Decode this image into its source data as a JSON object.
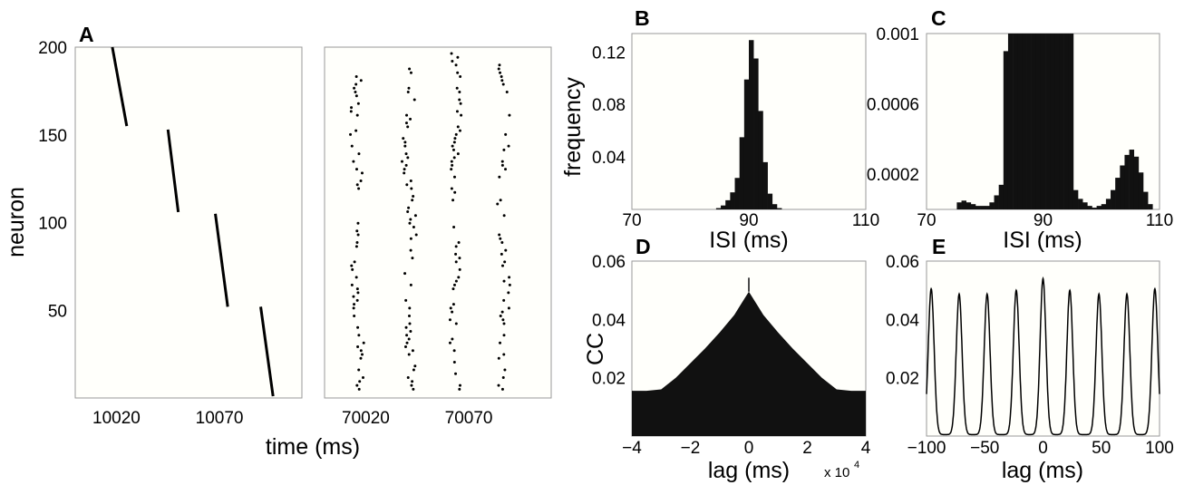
{
  "chart_data": [
    {
      "panel": "A",
      "type": "scatter",
      "ylabel": "neuron",
      "xlabel": "time (ms)",
      "ylim": [
        0,
        200
      ],
      "yticks": [
        "50",
        "100",
        "150",
        "200"
      ],
      "left": {
        "xlim": [
          10000,
          10110
        ],
        "xticks": [
          "10020",
          "10070"
        ],
        "segments": [
          {
            "x": [
              10018,
              10025
            ],
            "y": [
              200,
              155
            ]
          },
          {
            "x": [
              10045,
              10050
            ],
            "y": [
              153,
              106
            ]
          },
          {
            "x": [
              10068,
              10074
            ],
            "y": [
              105,
              52
            ]
          },
          {
            "x": [
              10090,
              10096
            ],
            "y": [
              52,
              1
            ]
          }
        ]
      },
      "right": {
        "xlim": [
          70000,
          70110
        ],
        "xticks": [
          "70020",
          "70070"
        ],
        "columns": [
          70016,
          70041,
          70064,
          70087
        ]
      }
    },
    {
      "panel": "B",
      "type": "bar",
      "ylabel": "frequency",
      "xlabel": "ISI (ms)",
      "xlim": [
        70,
        110
      ],
      "ylim": [
        0,
        0.134
      ],
      "xticks": [
        "70",
        "90",
        "110"
      ],
      "yticks": [
        "0.04",
        "0.08",
        "0.12"
      ],
      "bin_width": 0.8,
      "bins_x": [
        84.4,
        85.2,
        86.0,
        86.8,
        87.6,
        88.4,
        89.2,
        90.0,
        90.8,
        91.6,
        92.4,
        93.2,
        94.0,
        94.8
      ],
      "values": [
        0.001,
        0.003,
        0.007,
        0.013,
        0.024,
        0.055,
        0.099,
        0.129,
        0.115,
        0.075,
        0.036,
        0.012,
        0.004,
        0.001
      ]
    },
    {
      "panel": "C",
      "type": "bar",
      "xlabel": "ISI (ms)",
      "xlim": [
        70,
        110
      ],
      "ylim": [
        0,
        0.001
      ],
      "xticks": [
        "70",
        "90",
        "110"
      ],
      "yticks": [
        "0.0002",
        "0.0006",
        "0.001"
      ],
      "bin_width": 0.8,
      "bins_x": [
        75.2,
        76.0,
        76.8,
        77.6,
        78.4,
        79.2,
        80.0,
        80.8,
        81.6,
        82.4,
        83.2,
        84.0,
        84.8,
        85.6,
        86.4,
        87.2,
        88.0,
        88.8,
        89.6,
        90.4,
        91.2,
        92.0,
        92.8,
        93.6,
        94.4,
        95.2,
        96.0,
        96.8,
        97.6,
        98.4,
        99.2,
        100.0,
        100.8,
        101.6,
        102.4,
        103.2,
        104.0,
        104.8,
        105.6,
        106.4,
        107.2,
        108.0
      ],
      "values": [
        4e-05,
        5e-05,
        4e-05,
        3e-05,
        2e-05,
        2e-05,
        2e-05,
        4e-05,
        8e-05,
        0.00014,
        0.0009,
        0.001,
        0.001,
        0.001,
        0.001,
        0.001,
        0.001,
        0.001,
        0.001,
        0.001,
        0.001,
        0.001,
        0.001,
        0.001,
        0.001,
        0.00011,
        6e-05,
        4e-05,
        2e-05,
        1e-05,
        2e-05,
        3e-05,
        6e-05,
        0.00011,
        0.00018,
        0.00025,
        0.00031,
        0.00034,
        0.0003,
        0.00021,
        0.0001,
        3e-05
      ]
    },
    {
      "panel": "D",
      "type": "area",
      "ylabel": "CC",
      "xlabel": "lag (ms)",
      "axis_multiplier": "x 10",
      "axis_multiplier_exp": "4",
      "xlim": [
        -4,
        4
      ],
      "ylim": [
        0,
        0.06
      ],
      "xticks": [
        "−4",
        "−2",
        "0",
        "2",
        "4"
      ],
      "yticks": [
        "0.02",
        "0.04",
        "0.06"
      ],
      "x": [
        -4,
        -3.5,
        -3,
        -2.5,
        -2,
        -1.5,
        -1,
        -0.5,
        -0.25,
        0,
        0.25,
        0.5,
        1,
        1.5,
        2,
        2.5,
        3,
        3.5,
        4
      ],
      "values": [
        0.0155,
        0.0155,
        0.016,
        0.02,
        0.025,
        0.03,
        0.0355,
        0.0415,
        0.0455,
        0.0495,
        0.0455,
        0.0415,
        0.0355,
        0.03,
        0.025,
        0.02,
        0.016,
        0.0155,
        0.0155
      ],
      "peak_spike": 0.0543
    },
    {
      "panel": "E",
      "type": "line",
      "xlabel": "lag (ms)",
      "xlim": [
        -100,
        100
      ],
      "ylim": [
        0,
        0.06
      ],
      "xticks": [
        "−100",
        "−50",
        "0",
        "50",
        "100"
      ],
      "yticks": [
        "0.02",
        "0.04",
        "0.06"
      ],
      "peaks_x": [
        -96,
        -72,
        -48,
        -23,
        0,
        23,
        48,
        72,
        96
      ],
      "peaks_y": [
        0.05,
        0.0482,
        0.0482,
        0.0495,
        0.0535,
        0.0495,
        0.0482,
        0.0482,
        0.05
      ],
      "peak_width": 2.5
    }
  ]
}
